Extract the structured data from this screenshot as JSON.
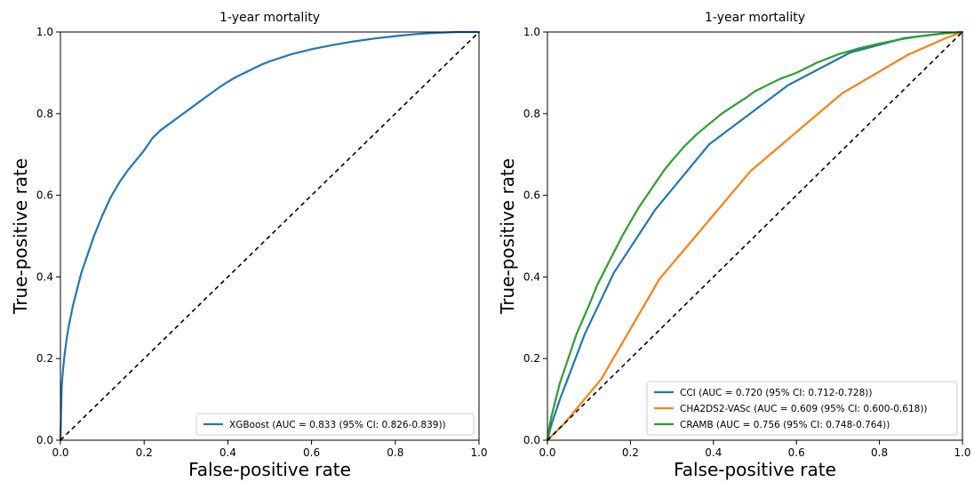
{
  "chart_data": [
    {
      "type": "line",
      "title": "1-year mortality",
      "xlabel": "False-positive rate",
      "ylabel": "True-positive rate",
      "xlim": [
        0,
        1
      ],
      "ylim": [
        0,
        1
      ],
      "xticks": [
        "0.0",
        "0.2",
        "0.4",
        "0.6",
        "0.8",
        "1.0"
      ],
      "yticks": [
        "0.0",
        "0.2",
        "0.4",
        "0.6",
        "0.8",
        "1.0"
      ],
      "grid": false,
      "legend_position": "bottom-right",
      "reference_line": {
        "style": "dashed",
        "color": "#000000",
        "x": [
          0,
          1
        ],
        "y": [
          0,
          1
        ]
      },
      "series": [
        {
          "name": "XGBoost (AUC = 0.833 (95% CI: 0.826-0.839))",
          "color": "#1f77b4",
          "x": [
            0,
            0.003,
            0.006,
            0.01,
            0.015,
            0.02,
            0.03,
            0.04,
            0.05,
            0.06,
            0.07,
            0.08,
            0.1,
            0.12,
            0.14,
            0.16,
            0.18,
            0.2,
            0.22,
            0.24,
            0.26,
            0.28,
            0.3,
            0.32,
            0.34,
            0.36,
            0.38,
            0.4,
            0.42,
            0.45,
            0.48,
            0.5,
            0.55,
            0.6,
            0.65,
            0.7,
            0.75,
            0.8,
            0.85,
            0.9,
            0.95,
            1.0
          ],
          "y": [
            0,
            0.13,
            0.17,
            0.21,
            0.25,
            0.28,
            0.33,
            0.37,
            0.41,
            0.44,
            0.47,
            0.5,
            0.55,
            0.595,
            0.63,
            0.66,
            0.685,
            0.71,
            0.74,
            0.76,
            0.775,
            0.79,
            0.805,
            0.82,
            0.835,
            0.85,
            0.865,
            0.878,
            0.89,
            0.905,
            0.92,
            0.928,
            0.945,
            0.958,
            0.968,
            0.977,
            0.984,
            0.99,
            0.995,
            0.998,
            1.0,
            1.0
          ]
        }
      ]
    },
    {
      "type": "line",
      "title": "1-year mortality",
      "xlabel": "False-positive rate",
      "ylabel": "True-positive rate",
      "xlim": [
        0,
        1
      ],
      "ylim": [
        0,
        1
      ],
      "xticks": [
        "0.0",
        "0.2",
        "0.4",
        "0.6",
        "0.8",
        "1.0"
      ],
      "yticks": [
        "0.0",
        "0.2",
        "0.4",
        "0.6",
        "0.8",
        "1.0"
      ],
      "grid": false,
      "legend_position": "bottom-right",
      "reference_line": {
        "style": "dashed",
        "color": "#000000",
        "x": [
          0,
          1
        ],
        "y": [
          0,
          1
        ]
      },
      "series": [
        {
          "name": "CCI (AUC = 0.720 (95% CI: 0.712-0.728))",
          "color": "#1f77b4",
          "x": [
            0,
            0.01,
            0.03,
            0.09,
            0.16,
            0.26,
            0.39,
            0.58,
            0.73,
            0.86,
            0.95,
            1.0
          ],
          "y": [
            0,
            0.04,
            0.1,
            0.26,
            0.41,
            0.565,
            0.725,
            0.87,
            0.95,
            0.985,
            0.996,
            1.0
          ]
        },
        {
          "name": "CHA2DS2-VASc (AUC = 0.609 (95% CI: 0.600-0.618))",
          "color": "#ff7f0e",
          "x": [
            0,
            0.04,
            0.13,
            0.27,
            0.49,
            0.71,
            0.87,
            0.96,
            1.0
          ],
          "y": [
            0,
            0.04,
            0.15,
            0.395,
            0.66,
            0.85,
            0.945,
            0.985,
            1.0
          ]
        },
        {
          "name": "CRAMB (AUC = 0.756 (95% CI: 0.748-0.764))",
          "color": "#2ca02c",
          "x": [
            0,
            0.005,
            0.01,
            0.02,
            0.03,
            0.05,
            0.07,
            0.1,
            0.12,
            0.15,
            0.18,
            0.2,
            0.22,
            0.25,
            0.28,
            0.3,
            0.33,
            0.36,
            0.39,
            0.42,
            0.45,
            0.48,
            0.5,
            0.53,
            0.56,
            0.6,
            0.65,
            0.7,
            0.75,
            0.8,
            0.85,
            0.9,
            0.95,
            1.0
          ],
          "y": [
            0,
            0.035,
            0.06,
            0.1,
            0.14,
            0.2,
            0.26,
            0.33,
            0.38,
            0.44,
            0.5,
            0.535,
            0.57,
            0.615,
            0.66,
            0.685,
            0.72,
            0.75,
            0.775,
            0.8,
            0.82,
            0.84,
            0.855,
            0.87,
            0.885,
            0.9,
            0.925,
            0.945,
            0.96,
            0.972,
            0.982,
            0.99,
            0.996,
            1.0
          ]
        }
      ]
    }
  ]
}
